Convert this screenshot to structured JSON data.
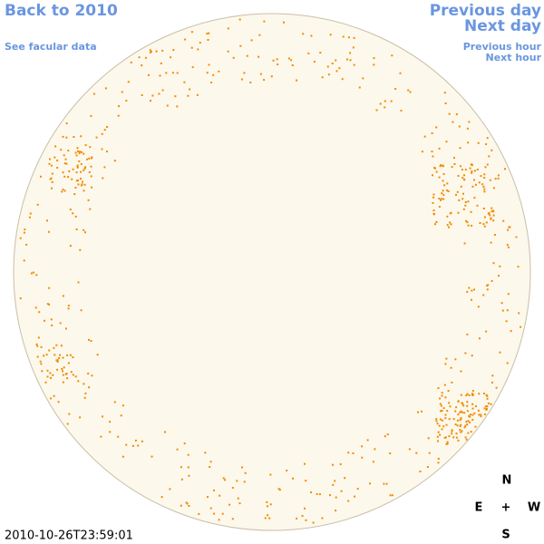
{
  "nav": {
    "back": "Back to 2010",
    "facular": "See facular data",
    "previous_day": "Previous day",
    "next_day": "Next day",
    "previous_hour": "Previous hour",
    "next_hour": "Next hour"
  },
  "timestamp": "2010-10-26T23:59:01",
  "compass": {
    "north": "N",
    "east": "E",
    "center": "+",
    "west": "W",
    "south": "S"
  }
}
